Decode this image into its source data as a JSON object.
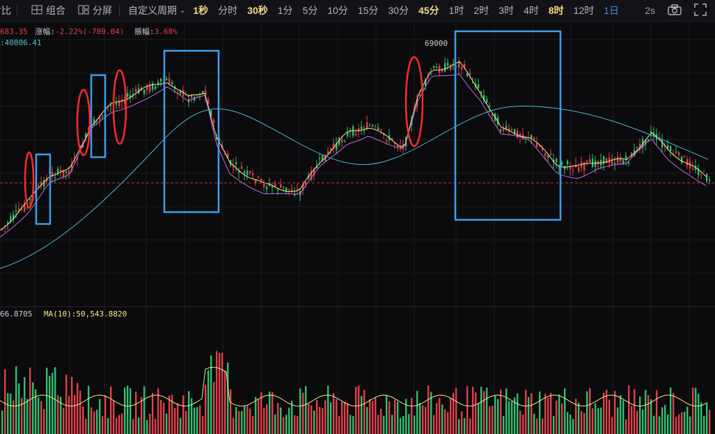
{
  "toolbar": {
    "compare_label": "对比",
    "combo_label": "组合",
    "split_label": "分屏",
    "custom_period_label": "自定义周期",
    "periods": [
      "1秒",
      "分时",
      "30秒",
      "1分",
      "5分",
      "10分",
      "15分",
      "30分",
      "45分",
      "1时",
      "2时",
      "3时",
      "4时",
      "8时",
      "12时",
      "1日"
    ],
    "highlighted_periods": [
      "1秒",
      "30秒",
      "45分",
      "8时"
    ],
    "selected_period": "1日",
    "refresh_label": "2s"
  },
  "price_info": {
    "current_partial": "683.35",
    "change_label": "涨幅:",
    "change_value": "-2.22%(-789.04)",
    "amplitude_label": "振幅:",
    "amplitude_value": "3.68%",
    "ma_partial": ":40806.41",
    "peak_label": "69000"
  },
  "volume_info": {
    "vol_partial": "66.8705",
    "ma10_label": "MA(10):50,543.8820"
  },
  "colors": {
    "background": "#0b0b0d",
    "up": "#2fbf71",
    "down": "#e0404a",
    "ma_short": "#f5e98a",
    "ma_mid": "#c46be0",
    "ma_long": "#4fb7d4",
    "annotation_box": "#3aa0f0",
    "annotation_ellipse": "#ff2a2a",
    "reference_line": "#c0392b"
  },
  "icons": [
    "compare-icon",
    "combo-icon",
    "split-icon",
    "dropdown-icon",
    "camera-icon",
    "fullscreen-icon"
  ]
}
